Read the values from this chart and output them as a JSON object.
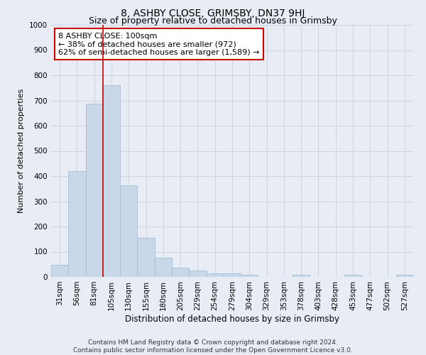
{
  "title": "8, ASHBY CLOSE, GRIMSBY, DN37 9HJ",
  "subtitle": "Size of property relative to detached houses in Grimsby",
  "xlabel": "Distribution of detached houses by size in Grimsby",
  "ylabel": "Number of detached properties",
  "categories": [
    "31sqm",
    "56sqm",
    "81sqm",
    "105sqm",
    "130sqm",
    "155sqm",
    "180sqm",
    "205sqm",
    "229sqm",
    "254sqm",
    "279sqm",
    "304sqm",
    "329sqm",
    "353sqm",
    "378sqm",
    "403sqm",
    "428sqm",
    "453sqm",
    "477sqm",
    "502sqm",
    "527sqm"
  ],
  "values": [
    48,
    420,
    688,
    760,
    362,
    155,
    75,
    38,
    25,
    15,
    15,
    8,
    0,
    0,
    8,
    0,
    0,
    8,
    0,
    0,
    8
  ],
  "bar_color": "#c8d8e8",
  "bar_edge_color": "#a8bece",
  "vline_color": "#cc0000",
  "vline_x_idx": 2.5,
  "annotation_text": "8 ASHBY CLOSE: 100sqm\n← 38% of detached houses are smaller (972)\n62% of semi-detached houses are larger (1,589) →",
  "annotation_box_facecolor": "#ffffff",
  "annotation_box_edgecolor": "#cc0000",
  "ylim": [
    0,
    1000
  ],
  "yticks": [
    0,
    100,
    200,
    300,
    400,
    500,
    600,
    700,
    800,
    900,
    1000
  ],
  "grid_color": "#ccd4e0",
  "background_color": "#e8edf5",
  "footer_text": "Contains HM Land Registry data © Crown copyright and database right 2024.\nContains public sector information licensed under the Open Government Licence v3.0.",
  "title_fontsize": 10,
  "subtitle_fontsize": 9,
  "xlabel_fontsize": 8.5,
  "ylabel_fontsize": 8,
  "tick_fontsize": 7.5,
  "annotation_fontsize": 8,
  "footer_fontsize": 6.5
}
